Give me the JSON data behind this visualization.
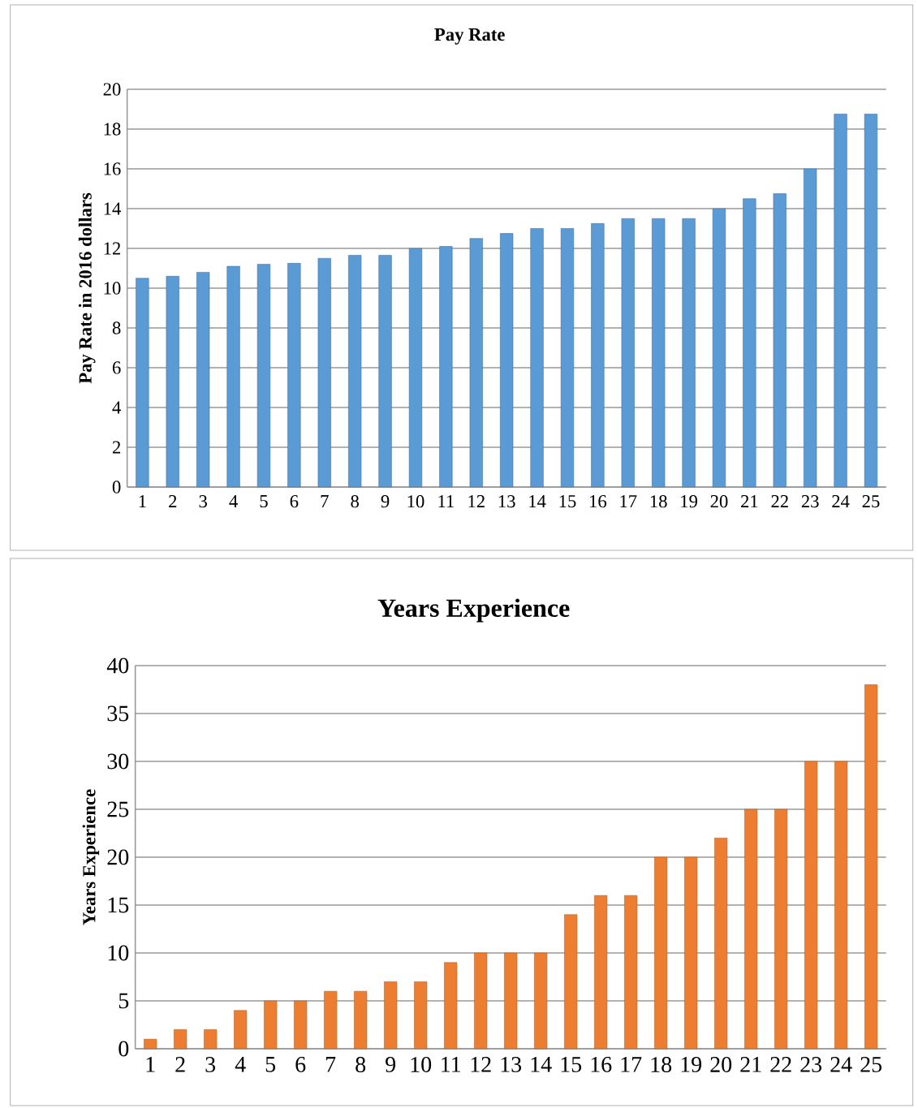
{
  "chart_data": [
    {
      "type": "bar",
      "title": "Pay Rate",
      "ylabel": "Pay Rate in 2016 dollars",
      "categories": [
        "1",
        "2",
        "3",
        "4",
        "5",
        "6",
        "7",
        "8",
        "9",
        "10",
        "11",
        "12",
        "13",
        "14",
        "15",
        "16",
        "17",
        "18",
        "19",
        "20",
        "21",
        "22",
        "23",
        "24",
        "25"
      ],
      "values": [
        10.5,
        10.6,
        10.8,
        11.1,
        11.2,
        11.25,
        11.5,
        11.65,
        11.65,
        12,
        12.1,
        12.5,
        12.75,
        13,
        13,
        13.25,
        13.5,
        13.5,
        13.5,
        14,
        14.5,
        14.75,
        16,
        18.75,
        18.75
      ],
      "color": "#5b9bd5",
      "ylim": [
        0,
        20
      ],
      "yticks": [
        0,
        2,
        4,
        6,
        8,
        10,
        12,
        14,
        16,
        18,
        20
      ],
      "grid": "y"
    },
    {
      "type": "bar",
      "title": "Years Experience",
      "ylabel": "Years Experience",
      "categories": [
        "1",
        "2",
        "3",
        "4",
        "5",
        "6",
        "7",
        "8",
        "9",
        "10",
        "11",
        "12",
        "13",
        "14",
        "15",
        "16",
        "17",
        "18",
        "19",
        "20",
        "21",
        "22",
        "23",
        "24",
        "25"
      ],
      "values": [
        1,
        2,
        2,
        4,
        5,
        5,
        6,
        6,
        7,
        7,
        9,
        10,
        10,
        10,
        14,
        16,
        16,
        20,
        20,
        22,
        25,
        25,
        30,
        30,
        38
      ],
      "color": "#ed7d31",
      "ylim": [
        0,
        40
      ],
      "yticks": [
        0,
        5,
        10,
        15,
        20,
        25,
        30,
        35,
        40
      ],
      "grid": "y"
    }
  ]
}
